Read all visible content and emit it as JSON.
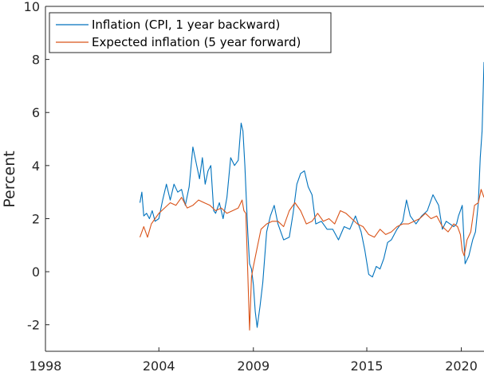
{
  "chart_data": {
    "type": "line",
    "title": "",
    "xlabel": "",
    "ylabel": "Percent",
    "xlim": [
      1998,
      2021.2
    ],
    "ylim": [
      -3,
      10
    ],
    "xticks": [
      1998,
      2004,
      2009,
      2015,
      2020
    ],
    "xtick_labels": [
      "1998",
      "2004",
      "2009",
      "2015",
      "2020"
    ],
    "yticks": [
      -2,
      0,
      2,
      4,
      6,
      8,
      10
    ],
    "ytick_labels": [
      "-2",
      "0",
      "2",
      "4",
      "6",
      "8",
      "10"
    ],
    "grid": false,
    "legend_position": "top-left",
    "series": [
      {
        "name": "Inflation (CPI, 1 year backward)",
        "color": "#0072bd",
        "x": [
          2003.0,
          2003.1,
          2003.2,
          2003.35,
          2003.5,
          2003.65,
          2003.8,
          2004.0,
          2004.2,
          2004.4,
          2004.6,
          2004.8,
          2005.0,
          2005.2,
          2005.4,
          2005.6,
          2005.8,
          2006.0,
          2006.15,
          2006.3,
          2006.45,
          2006.6,
          2006.75,
          2006.9,
          2007.0,
          2007.2,
          2007.4,
          2007.6,
          2007.8,
          2008.0,
          2008.2,
          2008.35,
          2008.45,
          2008.55,
          2008.7,
          2008.8,
          2008.9,
          2009.0,
          2009.1,
          2009.2,
          2009.35,
          2009.5,
          2009.7,
          2009.9,
          2010.1,
          2010.3,
          2010.6,
          2010.9,
          2011.1,
          2011.3,
          2011.5,
          2011.7,
          2011.9,
          2012.1,
          2012.3,
          2012.6,
          2012.9,
          2013.2,
          2013.5,
          2013.8,
          2014.1,
          2014.4,
          2014.7,
          2014.9,
          2015.1,
          2015.3,
          2015.5,
          2015.7,
          2015.9,
          2016.1,
          2016.3,
          2016.6,
          2016.9,
          2017.1,
          2017.3,
          2017.6,
          2017.9,
          2018.2,
          2018.5,
          2018.8,
          2019.0,
          2019.2,
          2019.4,
          2019.6,
          2019.75,
          2019.85,
          2019.95,
          2020.05,
          2020.2,
          2020.4,
          2020.6,
          2020.75,
          2020.9,
          2021.0,
          2021.1,
          2021.2
        ],
        "values": [
          2.6,
          3.0,
          2.1,
          2.2,
          2.0,
          2.3,
          1.9,
          2.0,
          2.7,
          3.3,
          2.7,
          3.3,
          3.0,
          3.1,
          2.5,
          3.2,
          4.7,
          4.0,
          3.5,
          4.3,
          3.3,
          3.8,
          4.0,
          2.3,
          2.2,
          2.6,
          2.0,
          2.8,
          4.3,
          4.0,
          4.2,
          5.6,
          5.3,
          4.0,
          1.5,
          0.3,
          0.1,
          -0.5,
          -1.5,
          -2.1,
          -1.3,
          -0.4,
          1.5,
          2.1,
          2.5,
          1.8,
          1.2,
          1.3,
          2.2,
          3.3,
          3.7,
          3.8,
          3.2,
          2.9,
          1.8,
          1.9,
          1.6,
          1.6,
          1.2,
          1.7,
          1.6,
          2.1,
          1.5,
          0.8,
          -0.1,
          -0.2,
          0.2,
          0.1,
          0.5,
          1.1,
          1.2,
          1.6,
          1.9,
          2.7,
          2.1,
          1.8,
          2.1,
          2.3,
          2.9,
          2.5,
          1.6,
          1.9,
          1.8,
          1.7,
          1.8,
          2.1,
          2.3,
          2.5,
          0.3,
          0.6,
          1.2,
          1.5,
          2.6,
          4.3,
          5.3,
          7.9
        ]
      },
      {
        "name": "Expected inflation (5 year forward)",
        "color": "#d95319",
        "x": [
          2003.0,
          2003.2,
          2003.4,
          2003.6,
          2003.8,
          2004.0,
          2004.3,
          2004.6,
          2004.9,
          2005.2,
          2005.5,
          2005.8,
          2006.1,
          2006.4,
          2006.7,
          2007.0,
          2007.3,
          2007.6,
          2007.9,
          2008.2,
          2008.4,
          2008.5,
          2008.6,
          2008.7,
          2008.8,
          2008.9,
          2009.0,
          2009.2,
          2009.4,
          2009.7,
          2010.0,
          2010.3,
          2010.6,
          2010.9,
          2011.2,
          2011.5,
          2011.8,
          2012.1,
          2012.4,
          2012.7,
          2013.0,
          2013.3,
          2013.6,
          2013.9,
          2014.2,
          2014.5,
          2014.8,
          2015.1,
          2015.4,
          2015.7,
          2016.0,
          2016.3,
          2016.6,
          2016.9,
          2017.2,
          2017.5,
          2017.8,
          2018.1,
          2018.4,
          2018.7,
          2019.0,
          2019.3,
          2019.6,
          2019.8,
          2019.95,
          2020.05,
          2020.15,
          2020.3,
          2020.5,
          2020.7,
          2020.9,
          2021.05,
          2021.2
        ],
        "values": [
          1.3,
          1.7,
          1.3,
          1.8,
          2.0,
          2.2,
          2.4,
          2.6,
          2.5,
          2.8,
          2.4,
          2.5,
          2.7,
          2.6,
          2.5,
          2.3,
          2.4,
          2.2,
          2.3,
          2.4,
          2.7,
          2.3,
          2.2,
          0.0,
          -2.2,
          -0.2,
          0.2,
          0.9,
          1.6,
          1.8,
          1.9,
          1.9,
          1.7,
          2.3,
          2.6,
          2.3,
          1.8,
          1.9,
          2.2,
          1.9,
          2.0,
          1.8,
          2.3,
          2.2,
          2.0,
          1.8,
          1.7,
          1.4,
          1.3,
          1.6,
          1.4,
          1.5,
          1.7,
          1.8,
          1.8,
          1.9,
          2.0,
          2.2,
          2.0,
          2.1,
          1.7,
          1.5,
          1.8,
          1.7,
          1.4,
          0.8,
          0.6,
          1.2,
          1.5,
          2.5,
          2.6,
          3.1,
          2.8
        ]
      }
    ]
  }
}
